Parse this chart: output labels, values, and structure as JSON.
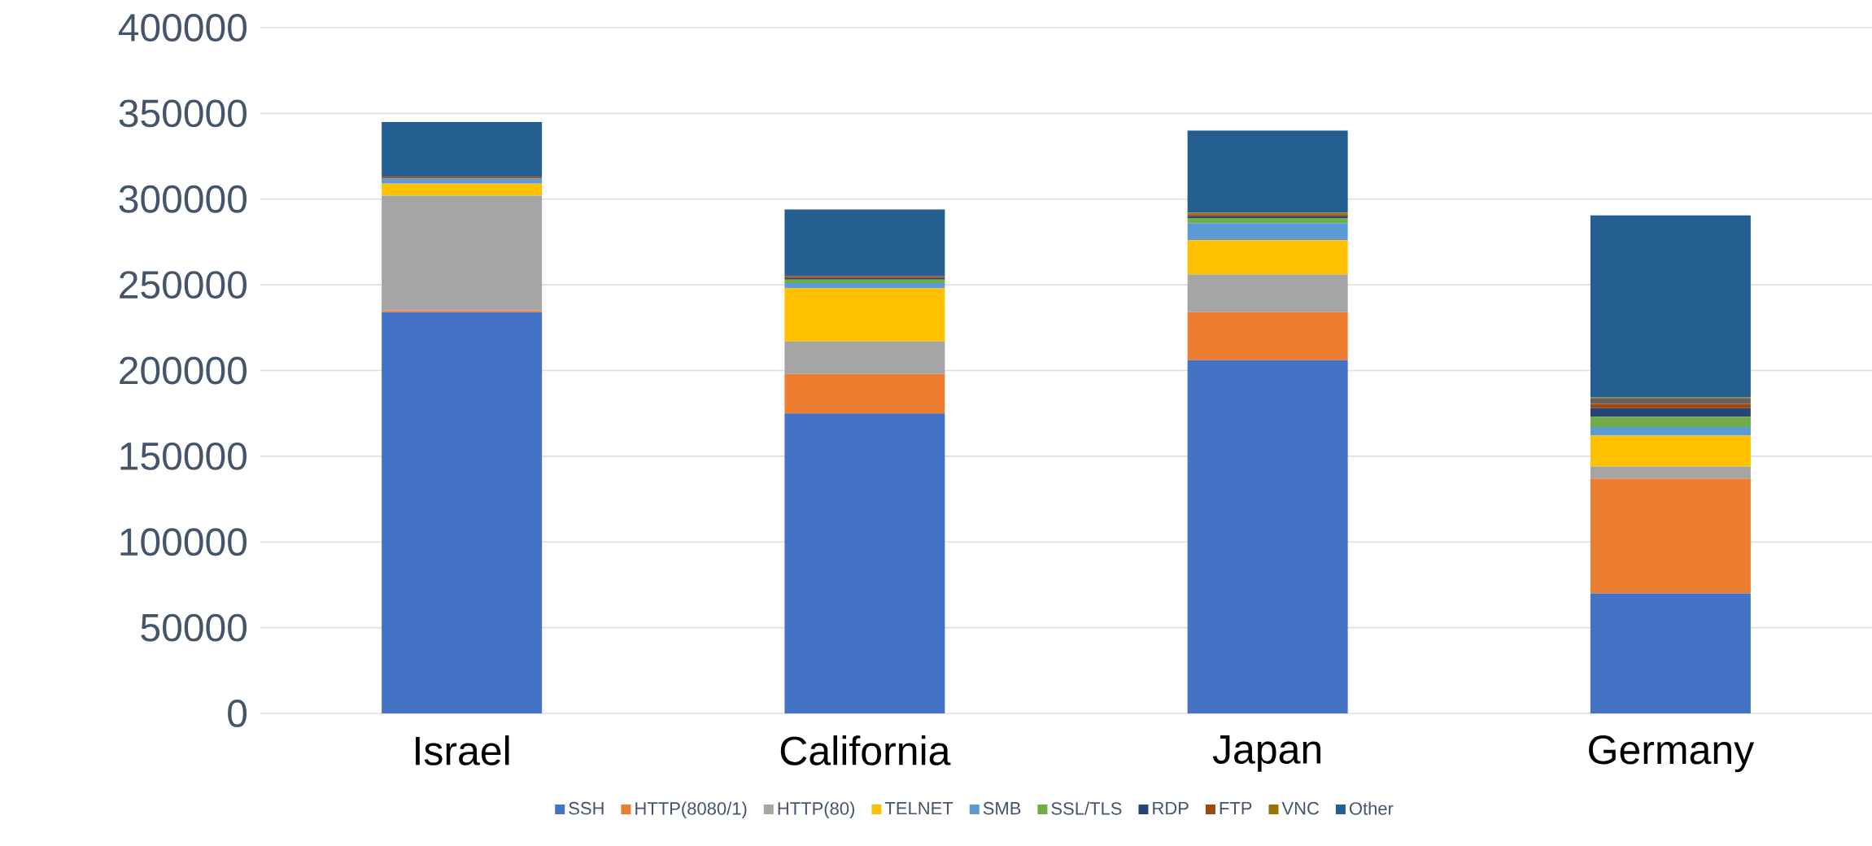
{
  "chart_data": {
    "type": "bar",
    "stacked": true,
    "categories": [
      "Israel",
      "California",
      "Japan",
      "Germany"
    ],
    "ylim": [
      0,
      400000
    ],
    "yticks": [
      0,
      50000,
      100000,
      150000,
      200000,
      250000,
      300000,
      350000,
      400000
    ],
    "grid": "y",
    "legend": "bottom",
    "series": [
      {
        "name": "SSH",
        "color": "#4472c4",
        "values": [
          234000,
          175000,
          206000,
          70000
        ]
      },
      {
        "name": "HTTP(8080/1)",
        "color": "#ed7d31",
        "values": [
          1000,
          23000,
          28000,
          67000
        ]
      },
      {
        "name": "HTTP(80)",
        "color": "#a5a5a5",
        "values": [
          67000,
          19000,
          22000,
          7000
        ]
      },
      {
        "name": "TELNET",
        "color": "#ffc000",
        "values": [
          7000,
          31000,
          20000,
          18000
        ]
      },
      {
        "name": "SMB",
        "color": "#5b9bd5",
        "values": [
          3000,
          3000,
          10000,
          5000
        ]
      },
      {
        "name": "SSL/TLS",
        "color": "#70ad47",
        "values": [
          0,
          2000,
          3000,
          6000
        ]
      },
      {
        "name": "RDP",
        "color": "#264478",
        "values": [
          0,
          1000,
          1000,
          5000
        ]
      },
      {
        "name": "FTP",
        "color": "#9e480e",
        "values": [
          1000,
          1000,
          1000,
          2500
        ]
      },
      {
        "color": "#636363",
        "values": [
          0,
          0,
          0,
          3500
        ]
      },
      {
        "name": "VNC",
        "color": "#997300",
        "values": [
          0,
          0,
          1000,
          500
        ]
      },
      {
        "name": "Other",
        "color": "#255e91",
        "values": [
          32000,
          39000,
          48000,
          106000
        ]
      }
    ]
  }
}
